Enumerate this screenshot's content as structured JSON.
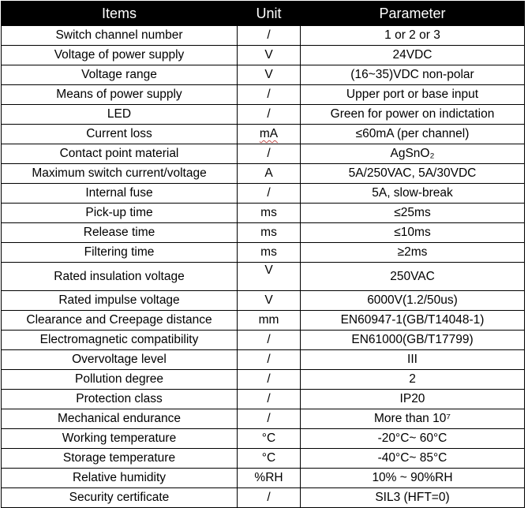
{
  "headers": {
    "items": "Items",
    "unit": "Unit",
    "parameter": "Parameter"
  },
  "rows": [
    {
      "item": "Switch channel number",
      "unit": "/",
      "param": "1 or 2 or 3"
    },
    {
      "item": "Voltage of power supply",
      "unit": "V",
      "param": "24VDC"
    },
    {
      "item": "Voltage range",
      "unit": "V",
      "param": "(16~35)VDC non-polar"
    },
    {
      "item": "Means of power supply",
      "unit": "/",
      "param": "Upper port or base input"
    },
    {
      "item": "LED",
      "unit": "/",
      "param": "Green for power on indictation"
    },
    {
      "item": "Current loss",
      "unit": "mA",
      "param": "≤60mA (per channel)"
    },
    {
      "item": "Contact point material",
      "unit": "/",
      "param": "AgSnO₂"
    },
    {
      "item": "Maximum switch current/voltage",
      "unit": "A",
      "param": "5A/250VAC, 5A/30VDC"
    },
    {
      "item": "Internal fuse",
      "unit": "/",
      "param": "5A, slow-break"
    },
    {
      "item": "Pick-up time",
      "unit": "ms",
      "param": "≤25ms"
    },
    {
      "item": "Release time",
      "unit": "ms",
      "param": "≤10ms"
    },
    {
      "item": "Filtering time",
      "unit": "ms",
      "param": "≥2ms"
    },
    {
      "item": "Rated insulation voltage",
      "unit": "V",
      "param": "250VAC"
    },
    {
      "item": "Rated impulse voltage",
      "unit": "V",
      "param": "6000V(1.2/50us)"
    },
    {
      "item": "Clearance and Creepage distance",
      "unit": "mm",
      "param": "EN60947-1(GB/T14048-1)"
    },
    {
      "item": "Electromagnetic compatibility",
      "unit": "/",
      "param": "EN61000(GB/T17799)"
    },
    {
      "item": "Overvoltage level",
      "unit": "/",
      "param": "III"
    },
    {
      "item": "Pollution degree",
      "unit": "/",
      "param": "2"
    },
    {
      "item": "Protection class",
      "unit": "/",
      "param": "IP20"
    },
    {
      "item": "Mechanical endurance",
      "unit": "/",
      "param": "More than 10⁷"
    },
    {
      "item": "Working temperature",
      "unit": "°C",
      "param": "-20°C~ 60°C"
    },
    {
      "item": "Storage temperature",
      "unit": "°C",
      "param": "-40°C~ 85°C"
    },
    {
      "item": "Relative humidity",
      "unit": "%RH",
      "param": "10% ~ 90%RH"
    },
    {
      "item": "Security certificate",
      "unit": "/",
      "param": "SIL3 (HFT=0)"
    }
  ]
}
